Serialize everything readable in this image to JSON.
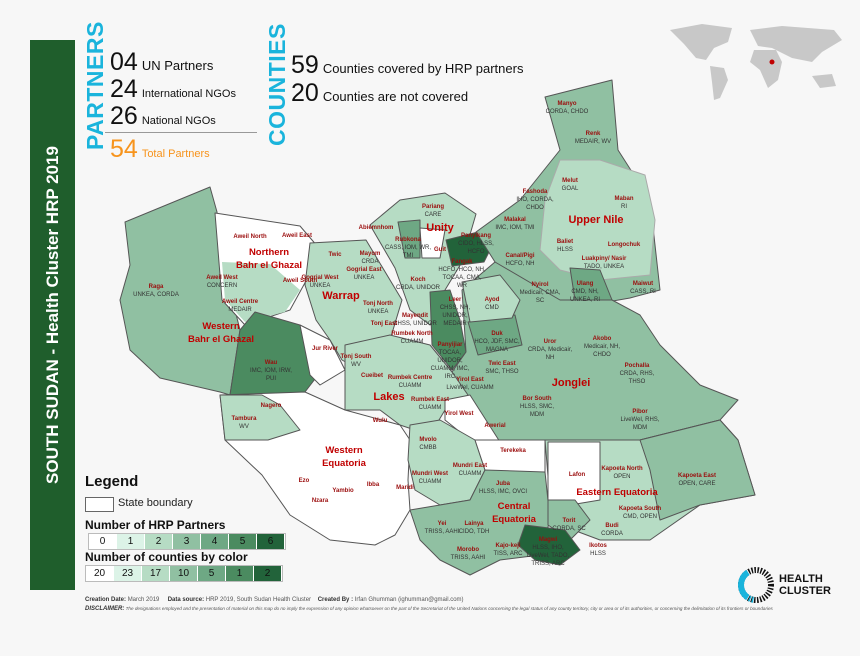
{
  "title": "SOUTH SUDAN - Health Cluster HRP 2019",
  "partners": {
    "heading": "PARTNERS",
    "items": [
      {
        "count": "04",
        "label": "UN Partners"
      },
      {
        "count": "24",
        "label": "International NGOs"
      },
      {
        "count": "26",
        "label": "National NGOs"
      }
    ],
    "total": {
      "count": "54",
      "label": "Total Partners"
    }
  },
  "counties_summary": {
    "heading": "COUNTIES",
    "items": [
      {
        "count": "59",
        "label": "Counties covered by HRP partners"
      },
      {
        "count": "20",
        "label": "Counties are not covered"
      }
    ]
  },
  "colors": {
    "sidebar": "#1f5e2c",
    "accent_cyan": "#1ab4dc",
    "total_orange": "#f7941d",
    "county_label": "#9b0d0d",
    "state_label": "#c00000",
    "levels": [
      "#ffffff",
      "#dcf3e7",
      "#b6dcc4",
      "#90c0a2",
      "#6ea884",
      "#4b8b60",
      "#22633a"
    ]
  },
  "legend": {
    "title": "Legend",
    "state_boundary": "State boundary",
    "partners_title": "Number of HRP Partners",
    "partner_levels": [
      "0",
      "1",
      "2",
      "3",
      "4",
      "5",
      "6"
    ],
    "counts_title": "Number of counties by color",
    "county_counts": [
      "20",
      "23",
      "17",
      "10",
      "5",
      "1",
      "2"
    ]
  },
  "states": [
    {
      "name": "Northern\nBahr el Ghazal"
    },
    {
      "name": "Unity"
    },
    {
      "name": "Upper Nile"
    },
    {
      "name": "Warrap"
    },
    {
      "name": "Western\nBahr el Ghazal"
    },
    {
      "name": "Lakes"
    },
    {
      "name": "Jonglei"
    },
    {
      "name": "Western\nEquatoria"
    },
    {
      "name": "Central\nEquatoria"
    },
    {
      "name": "Eastern Equatoria"
    }
  ],
  "counties": [
    {
      "name": "Manyo",
      "partners": "CORDA, CHDO"
    },
    {
      "name": "Renk",
      "partners": "MEDAIR, WV"
    },
    {
      "name": "Melut",
      "partners": "GOAL"
    },
    {
      "name": "Maban",
      "partners": "RI"
    },
    {
      "name": "Fashoda",
      "partners": "IHO, CORDA, CHDO"
    },
    {
      "name": "Malakal",
      "partners": "IMC, IOM, TMI"
    },
    {
      "name": "Panyikang",
      "partners": "CIDO, HLSS, HCFO"
    },
    {
      "name": "Baliet",
      "partners": "HLSS"
    },
    {
      "name": "Longochuk",
      "partners": ""
    },
    {
      "name": "Canal/Pigi",
      "partners": "HCFO, NH"
    },
    {
      "name": "Fangak",
      "partners": "HCFO, HCO, NH, TOCAA, CMA, WR"
    },
    {
      "name": "Luakpiny/ Nasir",
      "partners": "TADO, UNKEA"
    },
    {
      "name": "Maiwut",
      "partners": "CASS, RI"
    },
    {
      "name": "Ulang",
      "partners": "CMD, NH, UNKEA, RI"
    },
    {
      "name": "Nyirol",
      "partners": "Medicair, CMA, SC"
    },
    {
      "name": "Ayod",
      "partners": "CMD"
    },
    {
      "name": "Pariang",
      "partners": "CARE"
    },
    {
      "name": "Guit",
      "partners": ""
    },
    {
      "name": "Rubkona",
      "partners": "CASS, IOM, WR, TMI"
    },
    {
      "name": "Abiemnhom",
      "partners": ""
    },
    {
      "name": "Mayom",
      "partners": "CRDA"
    },
    {
      "name": "Koch",
      "partners": "CRDA, UNIDOR"
    },
    {
      "name": "Leer",
      "partners": "CHSS, NH, UNIDOR, MEDAIR"
    },
    {
      "name": "Mayendit",
      "partners": "CHSS, UNIDOR"
    },
    {
      "name": "Panyijiar",
      "partners": "TOCAA, UNIDOR, CUAMM, IMC, IRC"
    },
    {
      "name": "Duk",
      "partners": "HCO, JDF, SMC, MAGNA"
    },
    {
      "name": "Uror",
      "partners": "CRDA, Medicair, NH"
    },
    {
      "name": "Akobo",
      "partners": "Medicair, NH, CHDO"
    },
    {
      "name": "Pochalla",
      "partners": "CRDA, RHS, THSO"
    },
    {
      "name": "Twic East",
      "partners": "SMC, THSO"
    },
    {
      "name": "Bor South",
      "partners": "HLSS, SMC, MDM"
    },
    {
      "name": "Pibor",
      "partners": "LiveWel, RHS, MDM"
    },
    {
      "name": "Yirol East",
      "partners": "LiveWel, CUAMM"
    },
    {
      "name": "Yirol West",
      "partners": ""
    },
    {
      "name": "Awerial",
      "partners": ""
    },
    {
      "name": "Rumbek North",
      "partners": "CUAMM"
    },
    {
      "name": "Rumbek Centre",
      "partners": "CUAMM"
    },
    {
      "name": "Rumbek East",
      "partners": "CUAMM"
    },
    {
      "name": "Cueibet",
      "partners": ""
    },
    {
      "name": "Tonj South",
      "partners": "WV"
    },
    {
      "name": "Tonj East",
      "partners": ""
    },
    {
      "name": "Tonj North",
      "partners": "UNKEA"
    },
    {
      "name": "Jur River",
      "partners": ""
    },
    {
      "name": "Gogrial East",
      "partners": "UNKEA"
    },
    {
      "name": "Gogrial West",
      "partners": "UNKEA"
    },
    {
      "name": "Twic",
      "partners": ""
    },
    {
      "name": "Aweil North",
      "partners": ""
    },
    {
      "name": "Aweil East",
      "partners": ""
    },
    {
      "name": "Aweil West",
      "partners": "CONCERN"
    },
    {
      "name": "Aweil South",
      "partners": ""
    },
    {
      "name": "Aweil Centre",
      "partners": "MEDAIR"
    },
    {
      "name": "Raga",
      "partners": "UNKEA, CORDA"
    },
    {
      "name": "Wau",
      "partners": "IMC, IOM, IRW, PUI"
    },
    {
      "name": "Tambura",
      "partners": "WV"
    },
    {
      "name": "Nagero",
      "partners": ""
    },
    {
      "name": "Wulu",
      "partners": ""
    },
    {
      "name": "Ezo",
      "partners": ""
    },
    {
      "name": "Nzara",
      "partners": ""
    },
    {
      "name": "Yambio",
      "partners": ""
    },
    {
      "name": "Ibba",
      "partners": ""
    },
    {
      "name": "Maridi",
      "partners": ""
    },
    {
      "name": "Mvolo",
      "partners": "CMBB"
    },
    {
      "name": "Mundri West",
      "partners": "CUAMM"
    },
    {
      "name": "Mundri East",
      "partners": "CUAMM"
    },
    {
      "name": "Terekeka",
      "partners": ""
    },
    {
      "name": "Juba",
      "partners": "HLSS, IMC, OVCI"
    },
    {
      "name": "Yei",
      "partners": "TRISS, AAHI"
    },
    {
      "name": "Lainya",
      "partners": "CIDO, TDH"
    },
    {
      "name": "Morobo",
      "partners": "TRISS, AAHI"
    },
    {
      "name": "Kajo-keji",
      "partners": "TISS, ARC"
    },
    {
      "name": "Magwi",
      "partners": "HLSS, IHO, LiveWel, TADO, TRISS, ARC"
    },
    {
      "name": "Torit",
      "partners": "CORDA, SC"
    },
    {
      "name": "Ikotos",
      "partners": "HLSS"
    },
    {
      "name": "Lafon",
      "partners": ""
    },
    {
      "name": "Kapoeta North",
      "partners": "OPEN"
    },
    {
      "name": "Kapoeta East",
      "partners": "OPEN, CARE"
    },
    {
      "name": "Kapoeta South",
      "partners": "CMD, OPEN"
    },
    {
      "name": "Budi",
      "partners": "CORDA"
    }
  ],
  "footer": {
    "creation_label": "Creation Date:",
    "creation_value": "March 2019",
    "source_label": "Data source:",
    "source_value": "HRP 2019, South Sudan Health Cluster",
    "created_label": "Created By :",
    "created_value": "Irfan Ghumman (ighumman@gmail.com)",
    "disclaimer_label": "DISCLAIMER:",
    "disclaimer_text": "The designations employed and the presentation of material on this map do no imply the expression of any opinion whatsoever on the part of the Secretariat of the United Nations concerning the legal status of any county territory, city or area or of its authorities, or concerning the delimitation of its frontiers or boundaries"
  },
  "logo": {
    "line1": "HEALTH",
    "line2": "CLUSTER"
  }
}
